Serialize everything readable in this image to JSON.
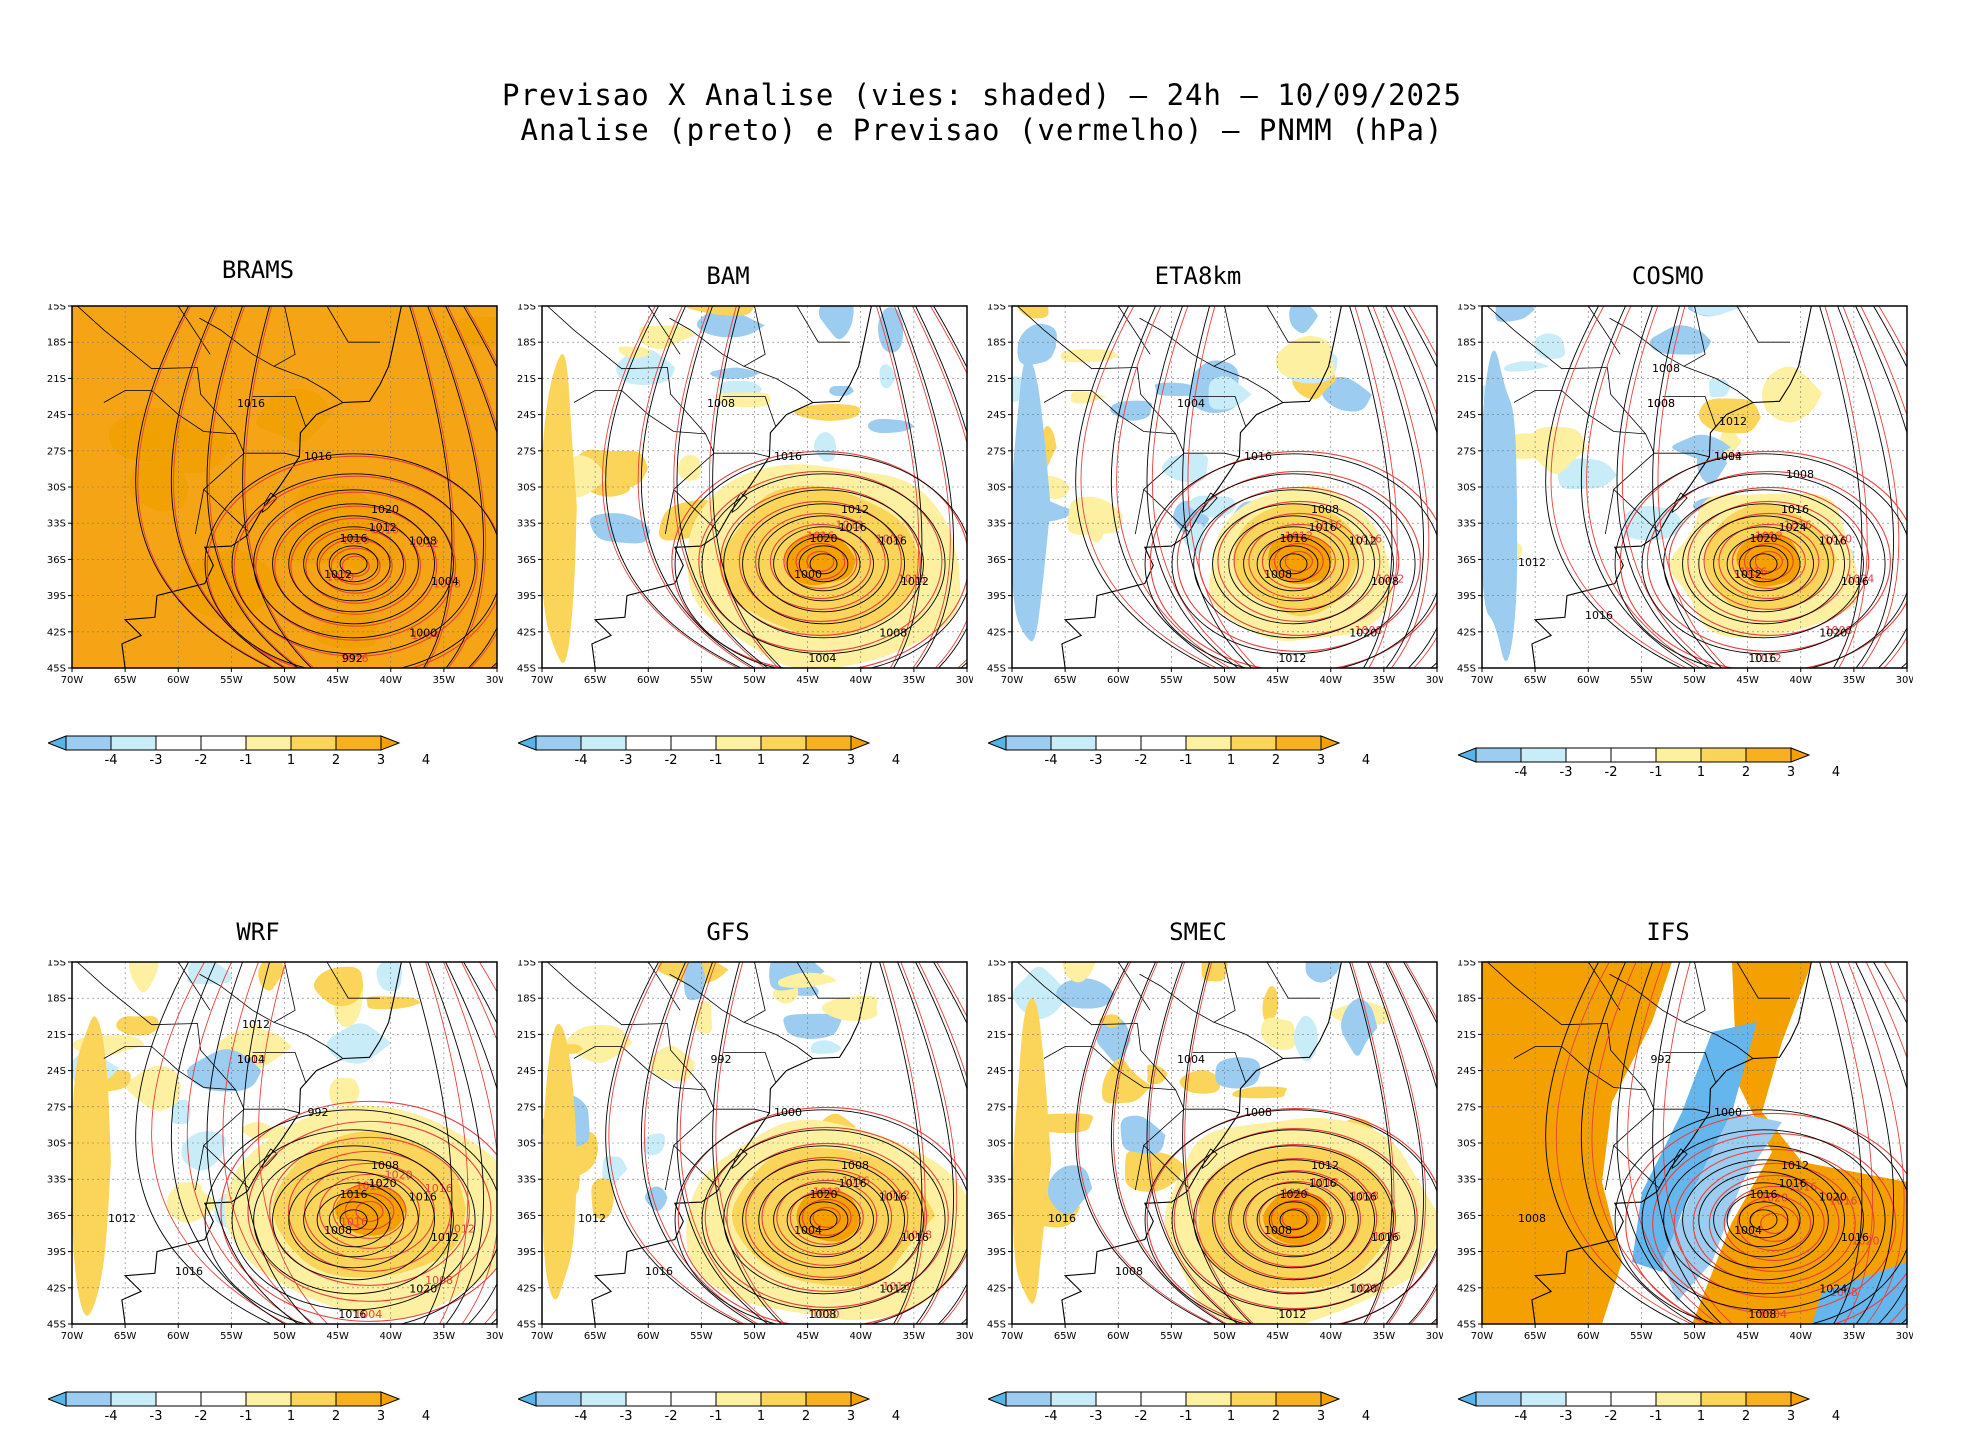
{
  "header": {
    "line1": "Previsao X Analise (vies: shaded) — 24h — 10/09/2025",
    "line2": "Analise (preto) e Previsao (vermelho) — PNMM (hPa)"
  },
  "axes": {
    "lat_labels": [
      "15S",
      "18S",
      "21S",
      "24S",
      "27S",
      "30S",
      "33S",
      "36S",
      "39S",
      "42S",
      "45S"
    ],
    "lon_labels": [
      "70W",
      "65W",
      "60W",
      "55W",
      "50W",
      "45W",
      "40W",
      "35W",
      "30W"
    ],
    "lat_range": [
      -45,
      -15
    ],
    "lon_range": [
      -70,
      -30
    ]
  },
  "colorbar": {
    "labels": [
      "-4",
      "-3",
      "-2",
      "-1",
      "1",
      "2",
      "3",
      "4"
    ],
    "colors": [
      "#56b4e9",
      "#9ccdf0",
      "#c8ecf8",
      "#ffffff",
      "#ffffff",
      "#fdf0a0",
      "#fbd55a",
      "#f6b020",
      "#f3a000"
    ]
  },
  "colors": {
    "analysis": "#000000",
    "forecast": "#e8403c",
    "bias_warm": "#f3a000",
    "bias_cool": "#64b6ec"
  },
  "panels": [
    {
      "name": "BRAMS",
      "fill": "warm_all",
      "analysis_center": [
        -43.5,
        -36.2
      ],
      "forecast_center": [
        -43.3,
        -36.4
      ],
      "analysis_labels": [
        "1016",
        "1012",
        "1008",
        "1004",
        "1000",
        "992",
        "1012",
        "1016",
        "1016",
        "1020"
      ],
      "forecast_labels": [
        "1020",
        "1016",
        "1012",
        "1008",
        "1004",
        "1016",
        "1020"
      ]
    },
    {
      "name": "BAM",
      "fill": "mixed_warm",
      "analysis_center": [
        -43.5,
        -36.2
      ],
      "forecast_center": [
        -43.8,
        -36.0
      ],
      "analysis_labels": [
        "1020",
        "1016",
        "1016",
        "1012",
        "1008",
        "1004",
        "1000",
        "1008",
        "1016",
        "1012"
      ],
      "forecast_labels": [
        "1016",
        "1012",
        "1008",
        "1016"
      ]
    },
    {
      "name": "ETA8km",
      "fill": "mixed_cool",
      "analysis_center": [
        -43.5,
        -36.2
      ],
      "forecast_center": [
        -43.0,
        -36.0
      ],
      "analysis_labels": [
        "1016",
        "1016",
        "1012",
        "1008",
        "1020",
        "1012",
        "1008",
        "1004",
        "1016",
        "1008"
      ],
      "forecast_labels": [
        "1012",
        "1016",
        "1016",
        "1012",
        "1008"
      ]
    },
    {
      "name": "COSMO",
      "fill": "mixed_cool",
      "analysis_center": [
        -43.5,
        -36.2
      ],
      "forecast_center": [
        -43.0,
        -36.0
      ],
      "analysis_labels": [
        "1020",
        "1024",
        "1016",
        "1016",
        "1020",
        "1016",
        "1012",
        "1008",
        "1004",
        "1016",
        "1012",
        "1016",
        "1008",
        "1012",
        "1008"
      ],
      "forecast_labels": [
        "1012",
        "1016",
        "1020",
        "1024",
        "1008",
        "1012",
        "1016",
        "1008",
        "1012",
        "1016"
      ]
    },
    {
      "name": "WRF",
      "fill": "mixed_warm",
      "analysis_center": [
        -43.5,
        -36.2
      ],
      "forecast_center": [
        -42.0,
        -35.5
      ],
      "analysis_labels": [
        "1016",
        "1020",
        "1016",
        "1012",
        "1020",
        "1016",
        "1008",
        "1004",
        "992",
        "1008",
        "1012",
        "1016",
        "1012"
      ],
      "forecast_labels": [
        "1012",
        "1020",
        "1016",
        "1012",
        "1008",
        "1004",
        "1016",
        "1012"
      ]
    },
    {
      "name": "GFS",
      "fill": "mixed_warm",
      "analysis_center": [
        -43.5,
        -36.2
      ],
      "forecast_center": [
        -43.2,
        -36.0
      ],
      "analysis_labels": [
        "1020",
        "1016",
        "1016",
        "1016",
        "1012",
        "1008",
        "1004",
        "992",
        "1000",
        "1008",
        "1012",
        "1016"
      ],
      "forecast_labels": [
        "1012",
        "1016",
        "1012",
        "1008",
        "1016",
        "1020"
      ]
    },
    {
      "name": "SMEC",
      "fill": "mixed_warm",
      "analysis_center": [
        -43.5,
        -36.2
      ],
      "forecast_center": [
        -43.3,
        -36.1
      ],
      "analysis_labels": [
        "1020",
        "1016",
        "1016",
        "1016",
        "1020",
        "1012",
        "1008",
        "1004",
        "1008",
        "1012",
        "1016",
        "1008"
      ],
      "forecast_labels": [
        "1016",
        "1012",
        "1008",
        "1016",
        "1020"
      ]
    },
    {
      "name": "IFS",
      "fill": "ifs",
      "analysis_center": [
        -43.5,
        -36.2
      ],
      "forecast_center": [
        -42.5,
        -36.5
      ],
      "analysis_labels": [
        "1016",
        "1016",
        "1020",
        "1016",
        "1024",
        "1008",
        "1004",
        "992",
        "1000",
        "1012",
        "1008"
      ],
      "forecast_labels": [
        "1020",
        "1016",
        "1016",
        "1020",
        "1008",
        "1004"
      ]
    }
  ]
}
